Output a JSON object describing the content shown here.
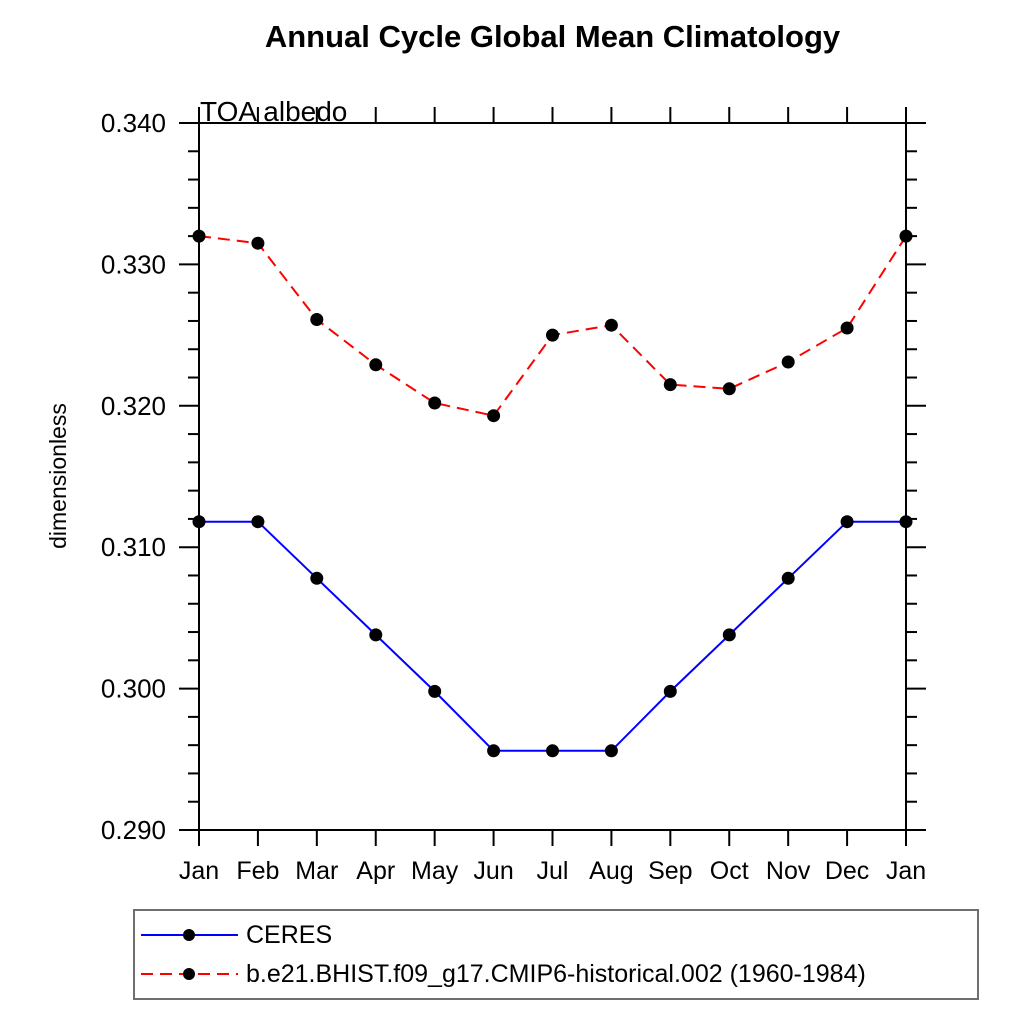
{
  "title": "Annual Cycle Global Mean Climatology",
  "subtitle": "TOA albedo",
  "colors": {
    "ceres_line": "#0000ff",
    "model_line": "#ff0000",
    "marker": "#000000",
    "axis": "#000000",
    "legend_border": "#6e6e6e",
    "background": "#ffffff"
  },
  "chart_data": {
    "type": "line",
    "title": "Annual Cycle Global Mean Climatology",
    "subtitle": "TOA albedo",
    "xlabel": "",
    "ylabel": "dimensionless",
    "ylim": [
      0.29,
      0.34
    ],
    "ytick_major_interval": 0.01,
    "ytick_minor_interval": 0.002,
    "ytick_label_format": "3-decimals",
    "categories": [
      "Jan",
      "Feb",
      "Mar",
      "Apr",
      "May",
      "Jun",
      "Jul",
      "Aug",
      "Sep",
      "Oct",
      "Nov",
      "Dec",
      "Jan"
    ],
    "grid": false,
    "legend_position": "bottom-left",
    "series": [
      {
        "name": "CERES",
        "line_color": "#0000ff",
        "line_style": "solid",
        "marker": "circle",
        "marker_color": "#000000",
        "values": [
          0.3118,
          0.3118,
          0.3078,
          0.3038,
          0.2998,
          0.2956,
          0.2956,
          0.2956,
          0.2998,
          0.3038,
          0.3078,
          0.3118,
          0.3118
        ]
      },
      {
        "name": "b.e21.BHIST.f09_g17.CMIP6-historical.002 (1960-1984)",
        "line_color": "#ff0000",
        "line_style": "dashed",
        "marker": "circle",
        "marker_color": "#000000",
        "values": [
          0.332,
          0.3315,
          0.3261,
          0.3229,
          0.3202,
          0.3193,
          0.325,
          0.3257,
          0.3215,
          0.3212,
          0.3231,
          0.3255,
          0.332
        ]
      }
    ]
  }
}
